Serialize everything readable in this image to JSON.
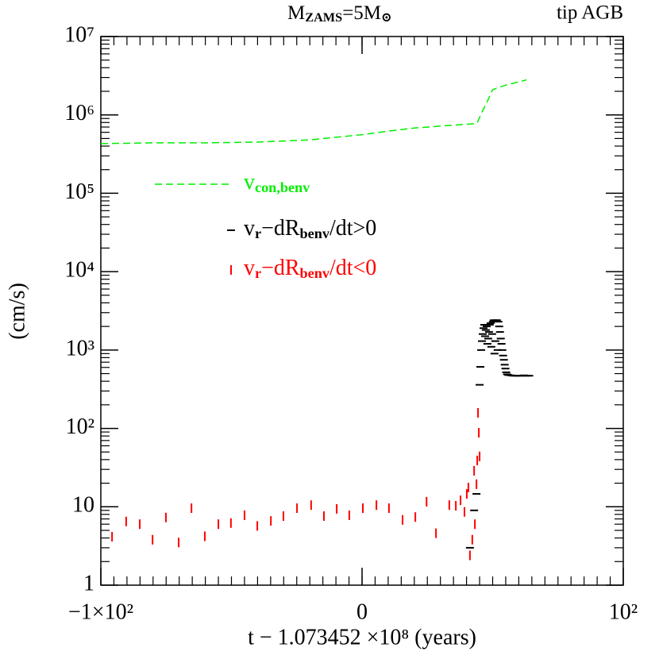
{
  "chart_data": {
    "type": "line",
    "title": "M_{ZAMS}=5M_{⊙}",
    "subtitle": "tip AGB",
    "x_label": "t − 1.073452 ×10⁸ (years)",
    "y_label": "(cm/s)",
    "log_y": true,
    "xlim": [
      -100,
      100
    ],
    "ylim": [
      1,
      10000000
    ],
    "xticks": [
      {
        "value": -100,
        "label": "−1×10²"
      },
      0,
      {
        "value": 100,
        "label": "10²"
      }
    ],
    "yticks": [
      1,
      10,
      {
        "value": 100,
        "label": "10²"
      },
      {
        "value": 1000,
        "label": "10³"
      },
      {
        "value": 10000,
        "label": "10⁴"
      },
      {
        "value": 100000,
        "label": "10⁵"
      },
      {
        "value": 1000000,
        "label": "10⁶"
      },
      {
        "value": 10000000,
        "label": "10⁷"
      }
    ],
    "series": [
      {
        "name": "v_{con,benv}",
        "color": "#00ee00",
        "style": "dashed-line",
        "x": [
          -100,
          -80,
          -60,
          -40,
          -20,
          0,
          10,
          20,
          30,
          40,
          44,
          46,
          48,
          50,
          55,
          63
        ],
        "values": [
          430000,
          440000,
          440000,
          450000,
          480000,
          560000,
          620000,
          680000,
          720000,
          760000,
          780000,
          1100000,
          1500000,
          2100000,
          2400000,
          2800000
        ]
      },
      {
        "name": "v_{r}−dR_{benv}/dt>0",
        "color": "#000000",
        "style": "hdash",
        "x": [
          41.3,
          42.9,
          43.8,
          45.0,
          45.3,
          45.6,
          45.9,
          46.2,
          46.5,
          46.8,
          47.1,
          47.4,
          47.7,
          48.0,
          48.3,
          48.6,
          48.9,
          49.2,
          49.5,
          49.8,
          50.1,
          50.4,
          50.7,
          51.0,
          51.3,
          51.6,
          51.9,
          52.2,
          52.5,
          52.8,
          53.1,
          53.4,
          53.7,
          54.0,
          54.3,
          54.6,
          54.9,
          55.2,
          55.5,
          56,
          57,
          58,
          59,
          60,
          61,
          62,
          63,
          64
        ],
        "values": [
          3.0,
          9.0,
          14.6,
          360,
          610,
          1000,
          1300,
          1600,
          1900,
          2100,
          1500,
          1800,
          2000,
          1200,
          1400,
          1700,
          2100,
          2200,
          1100,
          1600,
          2300,
          2400,
          900,
          1300,
          2400,
          2400,
          1000,
          2300,
          2000,
          1700,
          1400,
          1200,
          1000,
          850,
          750,
          650,
          580,
          520,
          490,
          480,
          475,
          470,
          470,
          470,
          470,
          475,
          470,
          470
        ]
      },
      {
        "name": "v_{r}−dR_{benv}/dt<0",
        "color": "#ff0000",
        "style": "vdash",
        "x": [
          -95.7,
          -90.3,
          -85.1,
          -80.2,
          -75.1,
          -70.2,
          -65.3,
          -60.2,
          -55.0,
          -50.2,
          -45.0,
          -40.1,
          -34.9,
          -30.1,
          -24.9,
          -19.5,
          -14.6,
          -9.7,
          -4.9,
          0.3,
          5.5,
          10.3,
          15.5,
          20.4,
          24.7,
          28.3,
          33.4,
          35.9,
          37.7,
          39.2,
          40.1,
          40.7,
          41.3,
          42.2,
          42.9,
          43.2,
          43.8,
          44.1,
          44.4,
          44.7,
          45.0
        ],
        "values": [
          4.15,
          6.5,
          6.0,
          3.8,
          7.3,
          3.5,
          9.6,
          4.2,
          6.0,
          6.2,
          7.8,
          5.7,
          6.6,
          7.6,
          9.6,
          10.5,
          7.6,
          9.4,
          7.8,
          9.6,
          10.5,
          9.6,
          6.8,
          7.4,
          11.6,
          4.6,
          10.5,
          10.3,
          12.1,
          8.6,
          14.6,
          17.6,
          2.4,
          3.8,
          28.8,
          6.0,
          19.4,
          39,
          158,
          88,
          44
        ]
      }
    ]
  }
}
